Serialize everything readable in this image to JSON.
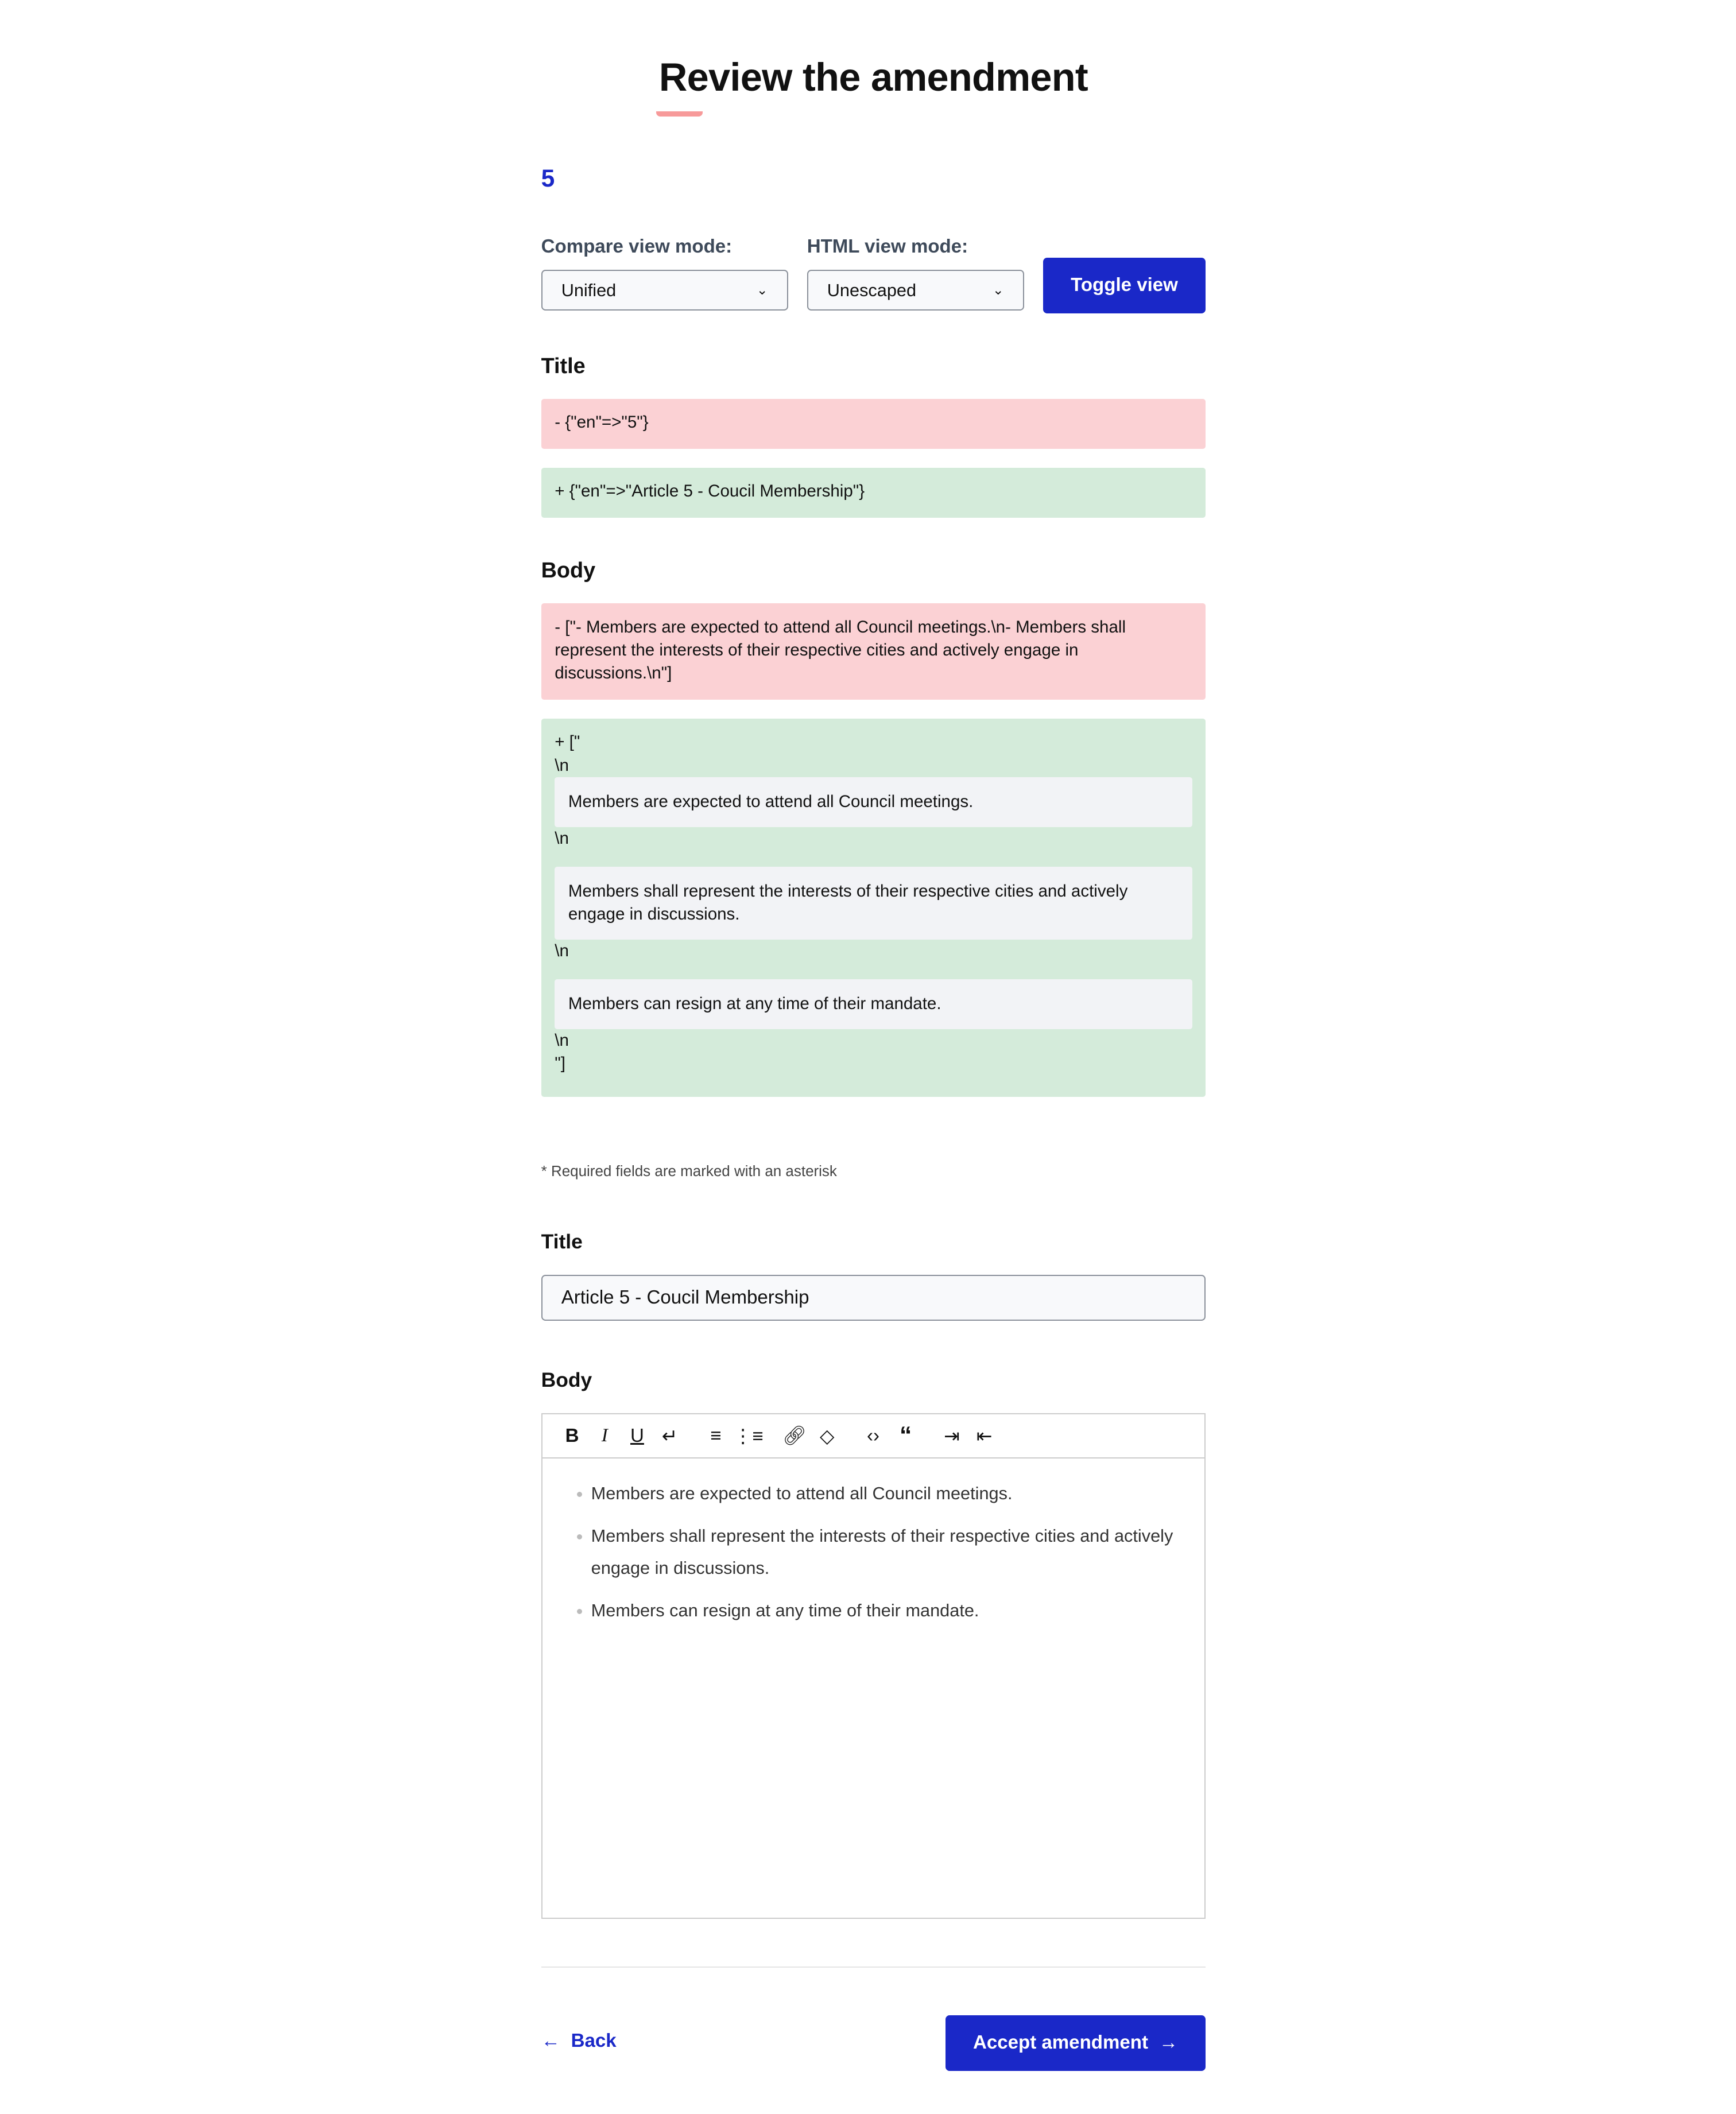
{
  "page": {
    "title": "Review the amendment",
    "amendment_number": "5"
  },
  "controls": {
    "compare_label": "Compare view mode:",
    "compare_value": "Unified",
    "html_label": "HTML view mode:",
    "html_value": "Unescaped",
    "toggle_label": "Toggle view"
  },
  "diff": {
    "title_label": "Title",
    "title_removed": "-  {\"en\"=>\"5\"}",
    "title_added": "+  {\"en\"=>\"Article 5 - Coucil Membership\"}",
    "body_label": "Body",
    "body_removed": "-  [\"- Members are expected to attend all Council meetings.\\n- Members shall represent the interests of their respective cities and actively engage in discussions.\\n\"]",
    "body_added_open": "+  [\"",
    "newline": "\\n",
    "body_added_close": "\"]",
    "body_items": [
      "Members are expected to attend all Council meetings.",
      "Members shall represent the interests of their respective cities and actively engage in discussions.",
      "Members can resign at any time of their mandate."
    ]
  },
  "form": {
    "required_note": "* Required fields are marked with an asterisk",
    "title_label": "Title",
    "title_value": "Article 5 - Coucil Membership",
    "body_label": "Body",
    "toolbar": [
      "bold-icon",
      "italic-icon",
      "underline-icon",
      "hard-break-icon",
      "ordered-list-icon",
      "bullet-list-icon",
      "link-icon",
      "eraser-icon",
      "code-icon",
      "blockquote-icon",
      "indent-icon",
      "outdent-icon"
    ],
    "body_items": [
      "Members are expected to attend all Council meetings.",
      "Members shall represent the interests of their respective cities and actively engage in discussions.",
      "Members can resign at any time of their mandate."
    ]
  },
  "footer": {
    "back_label": "Back",
    "accept_label": "Accept amendment"
  },
  "colors": {
    "primary": "#1a28c8",
    "removed_bg": "#fbd1d4",
    "added_bg": "#d4ebda",
    "accent_underline": "#f79a9a"
  }
}
